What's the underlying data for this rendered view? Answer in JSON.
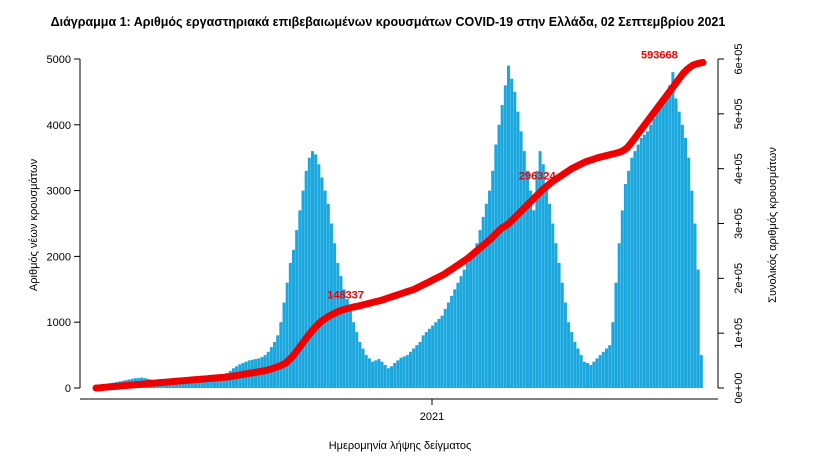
{
  "chart_data": {
    "type": "bar",
    "title": "Διάγραμμα 1: Αριθμός εργαστηριακά επιβεβαιωμένων κρουσμάτων COVID-19 στην Ελλάδα, 02 Σεπτεμβρίου 2021",
    "xlabel": "Ημερομηνία λήψης δείγματος",
    "ylabel": "Αριθμός νέων κρουσμάτων",
    "y2label": "Συνολικός αριθμός κρουσμάτων",
    "x_tick_labels": [
      "2021"
    ],
    "ylim": [
      0,
      5000
    ],
    "yticks": [
      "0",
      "1000",
      "2000",
      "3000",
      "4000",
      "5000"
    ],
    "y2lim": [
      0,
      600000
    ],
    "y2ticks": [
      "0e+00",
      "1e+05",
      "2e+05",
      "3e+05",
      "4e+05",
      "5e+05",
      "6e+05"
    ],
    "colors": {
      "bars": "#1aa7de",
      "cumulative": "#ee0000"
    },
    "series": [
      {
        "type": "bar",
        "axis": "left",
        "values": [
          30,
          40,
          55,
          60,
          70,
          80,
          90,
          100,
          110,
          120,
          130,
          140,
          150,
          150,
          160,
          150,
          140,
          130,
          120,
          110,
          100,
          95,
          90,
          85,
          80,
          80,
          85,
          90,
          95,
          100,
          110,
          120,
          130,
          140,
          150,
          160,
          170,
          180,
          190,
          200,
          210,
          230,
          260,
          300,
          330,
          360,
          380,
          400,
          420,
          430,
          440,
          450,
          470,
          500,
          550,
          620,
          700,
          800,
          1000,
          1300,
          1600,
          1900,
          2100,
          2400,
          2700,
          3000,
          3300,
          3500,
          3600,
          3550,
          3400,
          3200,
          3000,
          2800,
          2500,
          2200,
          1900,
          1700,
          1500,
          1350,
          1200,
          1000,
          850,
          700,
          600,
          500,
          450,
          400,
          420,
          440,
          400,
          350,
          300,
          330,
          380,
          420,
          460,
          480,
          500,
          550,
          600,
          650,
          700,
          800,
          850,
          900,
          950,
          1000,
          1050,
          1100,
          1200,
          1300,
          1400,
          1500,
          1600,
          1700,
          1800,
          1900,
          2000,
          2100,
          2200,
          2400,
          2600,
          2800,
          3000,
          3300,
          3700,
          4000,
          4300,
          4600,
          4900,
          4700,
          4500,
          4200,
          3900,
          3600,
          3300,
          3000,
          2700,
          3300,
          3600,
          3400,
          3100,
          2800,
          2500,
          2200,
          1900,
          1600,
          1300,
          1000,
          850,
          700,
          600,
          500,
          400,
          380,
          350,
          400,
          450,
          500,
          550,
          600,
          650,
          1000,
          1600,
          2200,
          2700,
          3100,
          3300,
          3500,
          3600,
          3700,
          3800,
          3850,
          3900,
          4000,
          4100,
          4200,
          4300,
          4400,
          4500,
          4600,
          4800,
          4400,
          4200,
          4000,
          3800,
          3500,
          3000,
          2500,
          1800,
          500
        ]
      },
      {
        "type": "line",
        "axis": "right",
        "values": [
          0,
          0,
          1000,
          1500,
          2000,
          2500,
          3000,
          3500,
          4000,
          4500,
          5000,
          5500,
          6000,
          6500,
          7000,
          7500,
          8000,
          8500,
          9000,
          9500,
          10000,
          10500,
          11000,
          11500,
          12000,
          12500,
          13000,
          13500,
          14000,
          14500,
          15000,
          15500,
          16000,
          16500,
          17000,
          17500,
          18000,
          18500,
          19000,
          19500,
          20000,
          21000,
          22000,
          23000,
          24000,
          25000,
          26000,
          27000,
          28000,
          29000,
          30000,
          31000,
          32000,
          34000,
          36000,
          38000,
          40000,
          43000,
          46000,
          52000,
          58000,
          66000,
          74000,
          82000,
          90000,
          98000,
          105000,
          112000,
          118000,
          123000,
          127000,
          131000,
          134000,
          137000,
          140000,
          142000,
          144000,
          145500,
          147000,
          148337,
          149500,
          151000,
          152500,
          154000,
          155500,
          157000,
          158500,
          160000,
          162000,
          164000,
          166000,
          168000,
          170000,
          172000,
          174000,
          176000,
          178000,
          180000,
          183000,
          186000,
          189000,
          192000,
          195000,
          198000,
          201000,
          204000,
          207000,
          211000,
          215000,
          219000,
          223000,
          227000,
          231000,
          235000,
          240000,
          245000,
          250000,
          255000,
          260000,
          265000,
          270000,
          276000,
          282000,
          288000,
          293000,
          296324,
          301000,
          307000,
          313000,
          319000,
          325000,
          331000,
          337000,
          343000,
          349000,
          355000,
          361000,
          366000,
          371000,
          376000,
          380000,
          384000,
          388000,
          392000,
          396000,
          400000,
          403000,
          406000,
          409000,
          412000,
          414000,
          416000,
          418000,
          420000,
          421500,
          423000,
          424500,
          426000,
          427500,
          429000,
          431000,
          434000,
          439000,
          446000,
          454000,
          462000,
          470000,
          478000,
          486000,
          494000,
          502000,
          510000,
          518000,
          526000,
          534000,
          542000,
          550000,
          558000,
          566000,
          574000,
          580000,
          585000,
          589000,
          591000,
          592500,
          593668
        ]
      }
    ],
    "annotations": [
      "148337",
      "296324",
      "593668"
    ]
  }
}
